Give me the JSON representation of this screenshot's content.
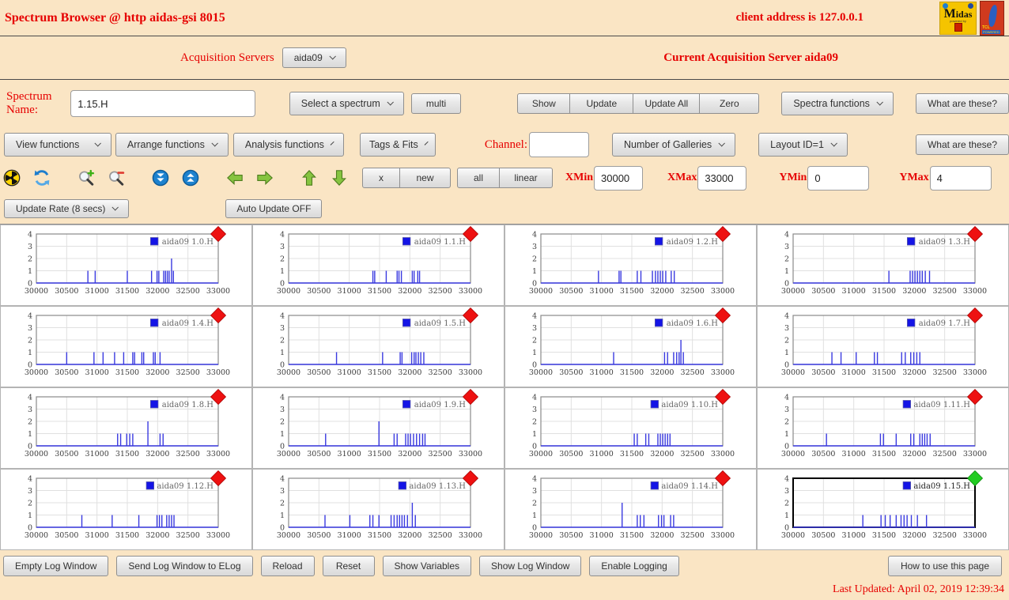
{
  "header": {
    "title": "Spectrum Browser @ http aidas-gsi 8015",
    "client_address": "client address is 127.0.0.1",
    "logos": {
      "midas_word": "Midas",
      "midas_powered": "powered by",
      "tcl_word": "TCL",
      "tcl_powered": "POWERED"
    }
  },
  "server_row": {
    "label": "Acquisition Servers",
    "selected_server": "aida09",
    "current_server_text": "Current Acquisition Server aida09"
  },
  "spectrum_row": {
    "name_label": "Spectrum Name:",
    "name_value": "1.15.H",
    "select_spectrum_label": "Select a spectrum",
    "multi_label": "multi",
    "show_label": "Show",
    "update_label": "Update",
    "update_all_label": "Update All",
    "zero_label": "Zero",
    "spectra_functions_label": "Spectra functions"
  },
  "functions_row": {
    "view_functions_label": "View functions",
    "arrange_functions_label": "Arrange functions",
    "analysis_functions_label": "Analysis functions",
    "tags_fits_label": "Tags & Fits",
    "channel_label": "Channel:",
    "channel_value": "",
    "galleries_label": "Number of Galleries",
    "layout_label": "Layout ID=1"
  },
  "range_row": {
    "x_label": "x",
    "new_label": "new",
    "all_label": "all",
    "linear_label": "linear",
    "xmin_label": "XMin",
    "xmin_value": "30000",
    "xmax_label": "XMax",
    "xmax_value": "33000",
    "ymin_label": "YMin",
    "ymin_value": "0",
    "ymax_label": "YMax",
    "ymax_value": "4"
  },
  "update_row": {
    "update_rate_label": "Update Rate (8 secs)",
    "auto_update_label": "Auto Update OFF"
  },
  "common": {
    "what_are_these": "What are these?"
  },
  "icons": [
    "radiation-icon",
    "refresh-icon",
    "zoom-in-icon",
    "zoom-out-icon",
    "double-arrow-down-icon",
    "double-arrow-up-icon",
    "arrow-left-icon",
    "arrow-right-icon",
    "arrow-up-icon",
    "arrow-down-icon"
  ],
  "footer": {
    "buttons": [
      "Empty Log Window",
      "Send Log Window to ELog",
      "Reload",
      "Reset",
      "Show Variables",
      "Show Log Window",
      "Enable Logging"
    ],
    "how_to_label": "How to use this page",
    "last_updated": "Last Updated: April 02, 2019 12:39:34"
  },
  "colors": {
    "page_bg": "#fae5c4",
    "accent_red": "#e60000",
    "plot_blue": "#3a3ae0",
    "legend_blue": "#1414e6",
    "marker_red": "#ee1111",
    "marker_green": "#22cc22",
    "grid_line": "#e0e0e0"
  },
  "chart_data": {
    "type": "bar",
    "note": "16 spike histograms (vertical-line spectra), counts vs channel",
    "xlim": [
      30000,
      33000
    ],
    "ylim": [
      0,
      4
    ],
    "xticks": [
      30000,
      30500,
      31000,
      31500,
      32000,
      32500,
      33000
    ],
    "yticks": [
      0,
      1,
      2,
      3,
      4
    ],
    "grid": true,
    "legend_position": "top-right",
    "plots": [
      {
        "name": "aida09 1.0.H",
        "marker": "red",
        "selected": false,
        "spikes": [
          [
            30850,
            1
          ],
          [
            30970,
            1
          ],
          [
            31500,
            1
          ],
          [
            31900,
            1
          ],
          [
            31990,
            1
          ],
          [
            32020,
            1
          ],
          [
            32100,
            1
          ],
          [
            32130,
            1
          ],
          [
            32160,
            1
          ],
          [
            32190,
            1
          ],
          [
            32230,
            2
          ],
          [
            32260,
            1
          ]
        ]
      },
      {
        "name": "aida09 1.1.H",
        "marker": "red",
        "selected": false,
        "spikes": [
          [
            31390,
            1
          ],
          [
            31420,
            1
          ],
          [
            31610,
            1
          ],
          [
            31790,
            1
          ],
          [
            31820,
            1
          ],
          [
            31860,
            1
          ],
          [
            32040,
            1
          ],
          [
            32070,
            1
          ],
          [
            32130,
            1
          ],
          [
            32160,
            1
          ]
        ]
      },
      {
        "name": "aida09 1.2.H",
        "marker": "red",
        "selected": false,
        "spikes": [
          [
            30950,
            1
          ],
          [
            31290,
            1
          ],
          [
            31320,
            1
          ],
          [
            31590,
            1
          ],
          [
            31650,
            1
          ],
          [
            31840,
            1
          ],
          [
            31890,
            1
          ],
          [
            31930,
            1
          ],
          [
            31970,
            1
          ],
          [
            32010,
            1
          ],
          [
            32060,
            1
          ],
          [
            32150,
            1
          ],
          [
            32200,
            1
          ]
        ]
      },
      {
        "name": "aida09 1.3.H",
        "marker": "red",
        "selected": false,
        "spikes": [
          [
            31580,
            1
          ],
          [
            31930,
            1
          ],
          [
            31970,
            1
          ],
          [
            32010,
            1
          ],
          [
            32050,
            1
          ],
          [
            32090,
            1
          ],
          [
            32130,
            1
          ],
          [
            32180,
            1
          ],
          [
            32250,
            1
          ]
        ]
      },
      {
        "name": "aida09 1.4.H",
        "marker": "red",
        "selected": false,
        "spikes": [
          [
            30500,
            1
          ],
          [
            30950,
            1
          ],
          [
            31100,
            1
          ],
          [
            31290,
            1
          ],
          [
            31440,
            1
          ],
          [
            31590,
            1
          ],
          [
            31620,
            1
          ],
          [
            31740,
            1
          ],
          [
            31770,
            1
          ],
          [
            31930,
            1
          ],
          [
            31960,
            1
          ],
          [
            32040,
            1
          ]
        ]
      },
      {
        "name": "aida09 1.5.H",
        "marker": "red",
        "selected": false,
        "spikes": [
          [
            30790,
            1
          ],
          [
            31550,
            1
          ],
          [
            31840,
            1
          ],
          [
            31870,
            1
          ],
          [
            32030,
            1
          ],
          [
            32070,
            1
          ],
          [
            32100,
            1
          ],
          [
            32140,
            1
          ],
          [
            32180,
            1
          ],
          [
            32230,
            1
          ]
        ]
      },
      {
        "name": "aida09 1.6.H",
        "marker": "red",
        "selected": false,
        "spikes": [
          [
            31200,
            1
          ],
          [
            32040,
            1
          ],
          [
            32090,
            1
          ],
          [
            32190,
            1
          ],
          [
            32240,
            1
          ],
          [
            32280,
            1
          ],
          [
            32310,
            2
          ],
          [
            32350,
            1
          ]
        ]
      },
      {
        "name": "aida09 1.7.H",
        "marker": "red",
        "selected": false,
        "spikes": [
          [
            30640,
            1
          ],
          [
            30790,
            1
          ],
          [
            31040,
            1
          ],
          [
            31340,
            1
          ],
          [
            31390,
            1
          ],
          [
            31790,
            1
          ],
          [
            31850,
            1
          ],
          [
            31940,
            1
          ],
          [
            31990,
            1
          ],
          [
            32040,
            1
          ],
          [
            32090,
            1
          ]
        ]
      },
      {
        "name": "aida09 1.8.H",
        "marker": "red",
        "selected": false,
        "spikes": [
          [
            31340,
            1
          ],
          [
            31390,
            1
          ],
          [
            31490,
            1
          ],
          [
            31540,
            1
          ],
          [
            31590,
            1
          ],
          [
            31840,
            2
          ],
          [
            32040,
            1
          ],
          [
            32090,
            1
          ]
        ]
      },
      {
        "name": "aida09 1.9.H",
        "marker": "red",
        "selected": false,
        "spikes": [
          [
            30610,
            1
          ],
          [
            31490,
            2
          ],
          [
            31740,
            1
          ],
          [
            31790,
            1
          ],
          [
            31930,
            1
          ],
          [
            31970,
            1
          ],
          [
            32010,
            1
          ],
          [
            32060,
            1
          ],
          [
            32110,
            1
          ],
          [
            32160,
            1
          ],
          [
            32210,
            1
          ],
          [
            32250,
            1
          ]
        ]
      },
      {
        "name": "aida09 1.10.H",
        "marker": "red",
        "selected": false,
        "spikes": [
          [
            31540,
            1
          ],
          [
            31590,
            1
          ],
          [
            31730,
            1
          ],
          [
            31780,
            1
          ],
          [
            31930,
            1
          ],
          [
            31970,
            1
          ],
          [
            32010,
            1
          ],
          [
            32050,
            1
          ],
          [
            32090,
            1
          ],
          [
            32130,
            1
          ]
        ]
      },
      {
        "name": "aida09 1.11.H",
        "marker": "red",
        "selected": false,
        "spikes": [
          [
            30550,
            1
          ],
          [
            31440,
            1
          ],
          [
            31490,
            1
          ],
          [
            31700,
            1
          ],
          [
            31940,
            1
          ],
          [
            31990,
            1
          ],
          [
            32090,
            1
          ],
          [
            32130,
            1
          ],
          [
            32170,
            1
          ],
          [
            32210,
            1
          ],
          [
            32260,
            1
          ]
        ]
      },
      {
        "name": "aida09 1.12.H",
        "marker": "red",
        "selected": false,
        "spikes": [
          [
            30750,
            1
          ],
          [
            31250,
            1
          ],
          [
            31690,
            1
          ],
          [
            31990,
            1
          ],
          [
            32030,
            1
          ],
          [
            32070,
            1
          ],
          [
            32150,
            1
          ],
          [
            32190,
            1
          ],
          [
            32230,
            1
          ],
          [
            32270,
            1
          ]
        ]
      },
      {
        "name": "aida09 1.13.H",
        "marker": "red",
        "selected": false,
        "spikes": [
          [
            30600,
            1
          ],
          [
            31010,
            1
          ],
          [
            31340,
            1
          ],
          [
            31390,
            1
          ],
          [
            31490,
            1
          ],
          [
            31690,
            1
          ],
          [
            31740,
            1
          ],
          [
            31790,
            1
          ],
          [
            31830,
            1
          ],
          [
            31870,
            1
          ],
          [
            31910,
            1
          ],
          [
            31960,
            1
          ],
          [
            32040,
            2
          ],
          [
            32090,
            1
          ]
        ]
      },
      {
        "name": "aida09 1.14.H",
        "marker": "red",
        "selected": false,
        "spikes": [
          [
            31340,
            2
          ],
          [
            31590,
            1
          ],
          [
            31640,
            1
          ],
          [
            31700,
            1
          ],
          [
            31940,
            1
          ],
          [
            31990,
            1
          ],
          [
            32030,
            1
          ],
          [
            32140,
            1
          ],
          [
            32190,
            1
          ]
        ]
      },
      {
        "name": "aida09 1.15.H",
        "marker": "green",
        "selected": true,
        "spikes": [
          [
            31150,
            1
          ],
          [
            31450,
            1
          ],
          [
            31520,
            1
          ],
          [
            31600,
            1
          ],
          [
            31700,
            1
          ],
          [
            31780,
            1
          ],
          [
            31830,
            1
          ],
          [
            31880,
            1
          ],
          [
            31950,
            1
          ],
          [
            32050,
            1
          ],
          [
            32200,
            1
          ]
        ]
      }
    ]
  }
}
